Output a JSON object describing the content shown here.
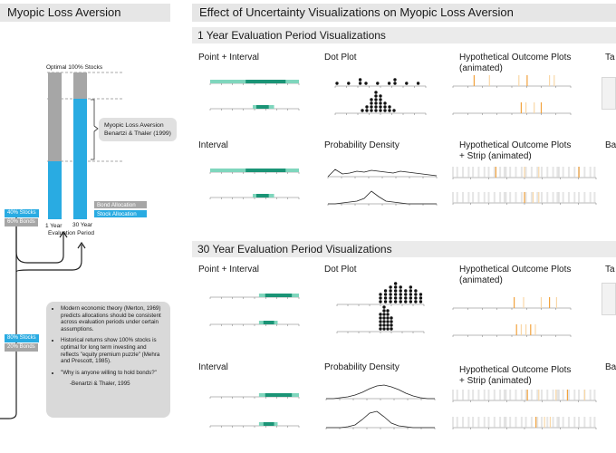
{
  "left": {
    "title": "Myopic Loss Aversion",
    "optimal_label": "Optimal 100% Stocks",
    "brace_label": [
      "Myopic Loss Aversion",
      "Benartzi & Thaler (1999)"
    ],
    "legend": {
      "bond": "Bond  Allocation",
      "stock": "Stock  Allocation"
    },
    "col1": [
      "1 Year",
      "Evaluation Period"
    ],
    "col2": "30 Year",
    "tag_40": "40% Stocks",
    "tag_60": "60% Bonds",
    "tag_80": "80% Stocks",
    "tag_20": "20% Bonds",
    "notes": [
      "Modern economic theory (Merton, 1969) predicts allocations should be consistent across evaluation periods under certain assumptions.",
      "Historical returns show 100% stocks is optimal for long term investing and reflects \"equity premium puzzle\" (Mehra and Prescott, 1985).",
      "\"Why is anyone willing to hold bonds?\""
    ],
    "note_cite": "-Benartzi & Thaler, 1995"
  },
  "right": {
    "title": "Effect of Uncertainty Visualizations on Myopic Loss Aversion",
    "section1": "1 Year Evaluation Period Visualizations",
    "section2": "30 Year Evaluation Period Visualizations",
    "s1": {
      "point_interval": "Point + Interval",
      "dot_plot": "Dot Plot",
      "hop": [
        "Hypothetical Outcome Plots",
        "(animated)"
      ],
      "interval": "Interval",
      "density": "Probability Density",
      "hop_strip": [
        "Hypothetical Outcome Plots",
        "+ Strip (animated)"
      ],
      "cut1": "Ta",
      "cut2": "Ba"
    },
    "s2": {
      "point_interval": "Point + Interval",
      "dot_plot": "Dot Plot",
      "hop": [
        "Hypothetical Outcome Plots",
        "(animated)"
      ],
      "interval": "Interval",
      "density": "Probability Density",
      "hop_strip": [
        "Hypothetical Outcome Plots",
        "+ Strip (animated)"
      ],
      "cut1": "Ta",
      "cut2": "Ba"
    }
  },
  "colors": {
    "teal_dark": "#1a9476",
    "teal_light": "#7fd6bd",
    "blue": "#29abe2",
    "gray": "#a6a6a6",
    "orange": "#f2a23c"
  }
}
